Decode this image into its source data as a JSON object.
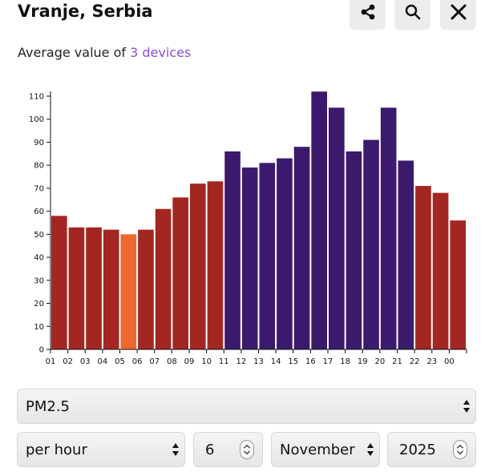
{
  "header": {
    "title": "Vranje, Serbia",
    "share_icon": "share-icon",
    "search_icon": "search-icon",
    "close_icon": "close-icon"
  },
  "subtitle": {
    "prefix": "Average value of ",
    "link": "3 devices"
  },
  "colors": {
    "red": "#a32622",
    "orange": "#ee6830",
    "purple": "#3b1a6d",
    "link": "#8a4fd8"
  },
  "chart_data": {
    "type": "bar",
    "title": "",
    "xlabel": "",
    "ylabel": "",
    "ylim": [
      0,
      110
    ],
    "yticks": [
      0,
      10,
      20,
      30,
      40,
      50,
      60,
      70,
      80,
      90,
      100,
      110
    ],
    "categories": [
      "01",
      "02",
      "03",
      "04",
      "05",
      "06",
      "07",
      "08",
      "09",
      "10",
      "11",
      "12",
      "13",
      "14",
      "15",
      "16",
      "17",
      "18",
      "19",
      "20",
      "21",
      "22",
      "23",
      "00"
    ],
    "values": [
      58,
      53,
      53,
      52,
      50,
      52,
      61,
      66,
      72,
      73,
      86,
      79,
      81,
      83,
      88,
      112,
      105,
      86,
      91,
      105,
      82,
      71,
      68,
      56
    ],
    "bar_colors": [
      "#a32622",
      "#a32622",
      "#a32622",
      "#a32622",
      "#ee6830",
      "#a32622",
      "#a32622",
      "#a32622",
      "#a32622",
      "#a32622",
      "#3b1a6d",
      "#3b1a6d",
      "#3b1a6d",
      "#3b1a6d",
      "#3b1a6d",
      "#3b1a6d",
      "#3b1a6d",
      "#3b1a6d",
      "#3b1a6d",
      "#3b1a6d",
      "#3b1a6d",
      "#a32622",
      "#a32622",
      "#a32622"
    ],
    "grid": false,
    "legend": "none"
  },
  "controls": {
    "pollutant": "PM2.5",
    "interval": "per hour",
    "day": "6",
    "month": "November",
    "year": "2025"
  }
}
